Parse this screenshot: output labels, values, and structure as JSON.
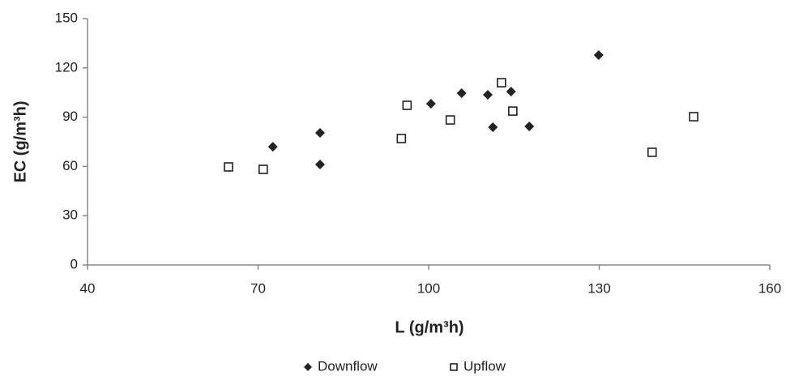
{
  "chart_data": {
    "type": "scatter",
    "x_label": "L (g/m³h)",
    "y_label": "EC (g/m³h)",
    "xlim": [
      40,
      160
    ],
    "xticks": [
      40,
      70,
      100,
      130,
      160
    ],
    "ylim": [
      0,
      150
    ],
    "yticks": [
      0,
      30,
      60,
      90,
      120,
      150
    ],
    "grid": false,
    "legend": "bottom",
    "series": [
      {
        "name": "Downflow",
        "color": "#222222",
        "marker": "diamond",
        "x": [
          72.6,
          80.9,
          80.9,
          100.4,
          105.8,
          110.4,
          114.5,
          111.3,
          117.7,
          129.9
        ],
        "y": [
          72.0,
          80.4,
          61.2,
          98.2,
          104.6,
          103.6,
          105.6,
          83.9,
          84.4,
          127.8
        ]
      },
      {
        "name": "Upflow",
        "color": "#222222",
        "marker": "square-open",
        "x": [
          64.8,
          70.9,
          95.2,
          96.2,
          103.8,
          112.8,
          114.8,
          139.3,
          146.6
        ],
        "y": [
          59.7,
          58.2,
          77.0,
          97.2,
          88.3,
          111.0,
          93.7,
          68.6,
          90.3
        ]
      }
    ]
  }
}
